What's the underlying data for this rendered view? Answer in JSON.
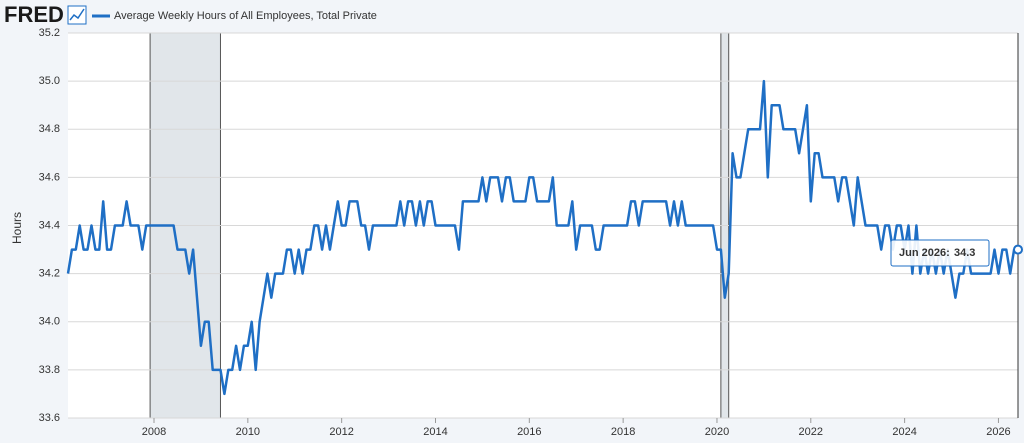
{
  "chart_data": {
    "type": "line",
    "logo": "FRED",
    "ylabel": "Hours",
    "ylim": [
      33.6,
      35.2
    ],
    "yticks": [
      33.6,
      33.8,
      {
        "value": 34,
        "label": "34.0"
      },
      34.2,
      34.4,
      34.6,
      34.8,
      {
        "value": 35,
        "label": "35.0"
      },
      35.2
    ],
    "xlim": [
      "2006-03",
      "2026-06"
    ],
    "xticks": [
      2008,
      2010,
      2012,
      2014,
      2016,
      2018,
      2020,
      2022,
      2024,
      2026
    ],
    "grid": true,
    "recessions": [
      {
        "start": "2007-12",
        "end": "2009-06"
      },
      {
        "start": "2020-02",
        "end": "2020-04"
      }
    ],
    "tooltip": {
      "label": "Jun 2026:",
      "value": 34.3
    },
    "x": [
      "2006-03",
      "2006-04",
      "2006-05",
      "2006-06",
      "2006-07",
      "2006-08",
      "2006-09",
      "2006-10",
      "2006-11",
      "2006-12",
      "2007-01",
      "2007-02",
      "2007-03",
      "2007-04",
      "2007-05",
      "2007-06",
      "2007-07",
      "2007-08",
      "2007-09",
      "2007-10",
      "2007-11",
      "2007-12",
      "2008-01",
      "2008-02",
      "2008-03",
      "2008-04",
      "2008-05",
      "2008-06",
      "2008-07",
      "2008-08",
      "2008-09",
      "2008-10",
      "2008-11",
      "2008-12",
      "2009-01",
      "2009-02",
      "2009-03",
      "2009-04",
      "2009-05",
      "2009-06",
      "2009-07",
      "2009-08",
      "2009-09",
      "2009-10",
      "2009-11",
      "2009-12",
      "2010-01",
      "2010-02",
      "2010-03",
      "2010-04",
      "2010-05",
      "2010-06",
      "2010-07",
      "2010-08",
      "2010-09",
      "2010-10",
      "2010-11",
      "2010-12",
      "2011-01",
      "2011-02",
      "2011-03",
      "2011-04",
      "2011-05",
      "2011-06",
      "2011-07",
      "2011-08",
      "2011-09",
      "2011-10",
      "2011-11",
      "2011-12",
      "2012-01",
      "2012-02",
      "2012-03",
      "2012-04",
      "2012-05",
      "2012-06",
      "2012-07",
      "2012-08",
      "2012-09",
      "2012-10",
      "2012-11",
      "2012-12",
      "2013-01",
      "2013-02",
      "2013-03",
      "2013-04",
      "2013-05",
      "2013-06",
      "2013-07",
      "2013-08",
      "2013-09",
      "2013-10",
      "2013-11",
      "2013-12",
      "2014-01",
      "2014-02",
      "2014-03",
      "2014-04",
      "2014-05",
      "2014-06",
      "2014-07",
      "2014-08",
      "2014-09",
      "2014-10",
      "2014-11",
      "2014-12",
      "2015-01",
      "2015-02",
      "2015-03",
      "2015-04",
      "2015-05",
      "2015-06",
      "2015-07",
      "2015-08",
      "2015-09",
      "2015-10",
      "2015-11",
      "2015-12",
      "2016-01",
      "2016-02",
      "2016-03",
      "2016-04",
      "2016-05",
      "2016-06",
      "2016-07",
      "2016-08",
      "2016-09",
      "2016-10",
      "2016-11",
      "2016-12",
      "2017-01",
      "2017-02",
      "2017-03",
      "2017-04",
      "2017-05",
      "2017-06",
      "2017-07",
      "2017-08",
      "2017-09",
      "2017-10",
      "2017-11",
      "2017-12",
      "2018-01",
      "2018-02",
      "2018-03",
      "2018-04",
      "2018-05",
      "2018-06",
      "2018-07",
      "2018-08",
      "2018-09",
      "2018-10",
      "2018-11",
      "2018-12",
      "2019-01",
      "2019-02",
      "2019-03",
      "2019-04",
      "2019-05",
      "2019-06",
      "2019-07",
      "2019-08",
      "2019-09",
      "2019-10",
      "2019-11",
      "2019-12",
      "2020-01",
      "2020-02",
      "2020-03",
      "2020-04",
      "2020-05",
      "2020-06",
      "2020-07",
      "2020-08",
      "2020-09",
      "2020-10",
      "2020-11",
      "2020-12",
      "2021-01",
      "2021-02",
      "2021-03",
      "2021-04",
      "2021-05",
      "2021-06",
      "2021-07",
      "2021-08",
      "2021-09",
      "2021-10",
      "2021-11",
      "2021-12",
      "2022-01",
      "2022-02",
      "2022-03",
      "2022-04",
      "2022-05",
      "2022-06",
      "2022-07",
      "2022-08",
      "2022-09",
      "2022-10",
      "2022-11",
      "2022-12",
      "2023-01",
      "2023-02",
      "2023-03",
      "2023-04",
      "2023-05",
      "2023-06",
      "2023-07",
      "2023-08",
      "2023-09",
      "2023-10",
      "2023-11",
      "2023-12",
      "2024-01",
      "2024-02",
      "2024-03",
      "2024-04",
      "2024-05",
      "2024-06",
      "2024-07",
      "2024-08",
      "2024-09",
      "2024-10",
      "2024-11",
      "2024-12",
      "2025-01",
      "2025-02",
      "2025-03",
      "2025-04",
      "2025-05",
      "2025-06",
      "2025-07",
      "2025-08",
      "2025-09",
      "2025-10",
      "2025-11",
      "2025-12",
      "2026-01",
      "2026-02",
      "2026-03",
      "2026-04",
      "2026-05",
      "2026-06"
    ],
    "series": [
      {
        "name": "Average Weekly Hours of All Employees, Total Private",
        "color": "#1f6fc5",
        "values": [
          34.2,
          34.3,
          34.3,
          34.4,
          34.3,
          34.3,
          34.4,
          34.3,
          34.3,
          34.5,
          34.3,
          34.3,
          34.4,
          34.4,
          34.4,
          34.5,
          34.4,
          34.4,
          34.4,
          34.3,
          34.4,
          34.4,
          34.4,
          34.4,
          34.4,
          34.4,
          34.4,
          34.4,
          34.3,
          34.3,
          34.3,
          34.2,
          34.3,
          34.1,
          33.9,
          34.0,
          34.0,
          33.8,
          33.8,
          33.8,
          33.7,
          33.8,
          33.8,
          33.9,
          33.8,
          33.9,
          33.9,
          34.0,
          33.8,
          34.0,
          34.1,
          34.2,
          34.1,
          34.2,
          34.2,
          34.2,
          34.3,
          34.3,
          34.2,
          34.3,
          34.2,
          34.3,
          34.3,
          34.4,
          34.4,
          34.3,
          34.4,
          34.3,
          34.4,
          34.5,
          34.4,
          34.4,
          34.5,
          34.5,
          34.5,
          34.4,
          34.4,
          34.3,
          34.4,
          34.4,
          34.4,
          34.4,
          34.4,
          34.4,
          34.4,
          34.5,
          34.4,
          34.5,
          34.5,
          34.4,
          34.5,
          34.4,
          34.5,
          34.5,
          34.4,
          34.4,
          34.4,
          34.4,
          34.4,
          34.4,
          34.3,
          34.5,
          34.5,
          34.5,
          34.5,
          34.5,
          34.6,
          34.5,
          34.6,
          34.6,
          34.6,
          34.5,
          34.6,
          34.6,
          34.5,
          34.5,
          34.5,
          34.5,
          34.6,
          34.6,
          34.5,
          34.5,
          34.5,
          34.5,
          34.6,
          34.4,
          34.4,
          34.4,
          34.4,
          34.5,
          34.3,
          34.4,
          34.4,
          34.4,
          34.4,
          34.3,
          34.3,
          34.4,
          34.4,
          34.4,
          34.4,
          34.4,
          34.4,
          34.4,
          34.5,
          34.5,
          34.4,
          34.5,
          34.5,
          34.5,
          34.5,
          34.5,
          34.5,
          34.5,
          34.4,
          34.5,
          34.4,
          34.5,
          34.4,
          34.4,
          34.4,
          34.4,
          34.4,
          34.4,
          34.4,
          34.4,
          34.3,
          34.3,
          34.1,
          34.2,
          34.7,
          34.6,
          34.6,
          34.7,
          34.8,
          34.8,
          34.8,
          34.8,
          35.0,
          34.6,
          34.9,
          34.9,
          34.9,
          34.8,
          34.8,
          34.8,
          34.8,
          34.7,
          34.8,
          34.9,
          34.5,
          34.7,
          34.7,
          34.6,
          34.6,
          34.6,
          34.6,
          34.5,
          34.6,
          34.6,
          34.5,
          34.4,
          34.6,
          34.5,
          34.4,
          34.4,
          34.4,
          34.4,
          34.3,
          34.4,
          34.4,
          34.3,
          34.4,
          34.4,
          34.3,
          34.4,
          34.2,
          34.4,
          34.2,
          34.3,
          34.2,
          34.3,
          34.2,
          34.3,
          34.2,
          34.3,
          34.2,
          34.1,
          34.2,
          34.2,
          34.3,
          34.2,
          34.2,
          34.2,
          34.2,
          34.2,
          34.2,
          34.3,
          34.2,
          34.3,
          34.3,
          34.2,
          34.3,
          34.3
        ]
      }
    ]
  }
}
